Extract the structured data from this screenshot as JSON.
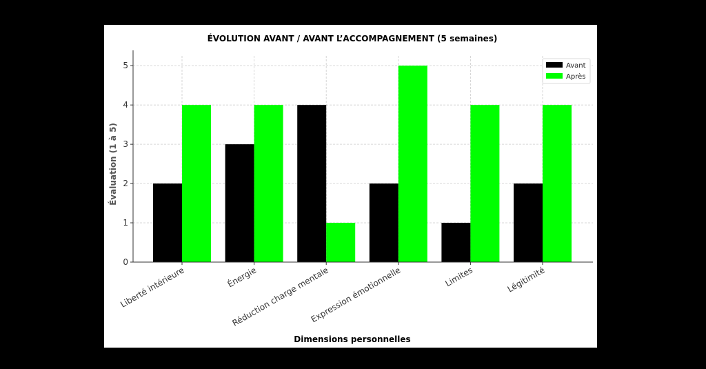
{
  "chart_data": {
    "type": "bar",
    "title": "ÉVOLUTION AVANT / AVANT L’ACCOMPAGNEMENT (5 semaines)",
    "xlabel": "Dimensions personnelles",
    "ylabel": "Évaluation (1 à 5)",
    "categories": [
      "Liberté intérieure",
      "Énergie",
      "Réduction charge mentale",
      "Expression émotionnelle",
      "Limites",
      "Légitimité"
    ],
    "series": [
      {
        "name": "Avant",
        "values": [
          2,
          3,
          4,
          2,
          1,
          2
        ],
        "color": "#000000"
      },
      {
        "name": "Après",
        "values": [
          4,
          4,
          1,
          5,
          4,
          4
        ],
        "color": "#00ff00"
      }
    ],
    "ylim": [
      0,
      5.25
    ],
    "yticks": [
      0,
      1,
      2,
      3,
      4,
      5
    ],
    "grid": true,
    "legend": "top-right"
  }
}
